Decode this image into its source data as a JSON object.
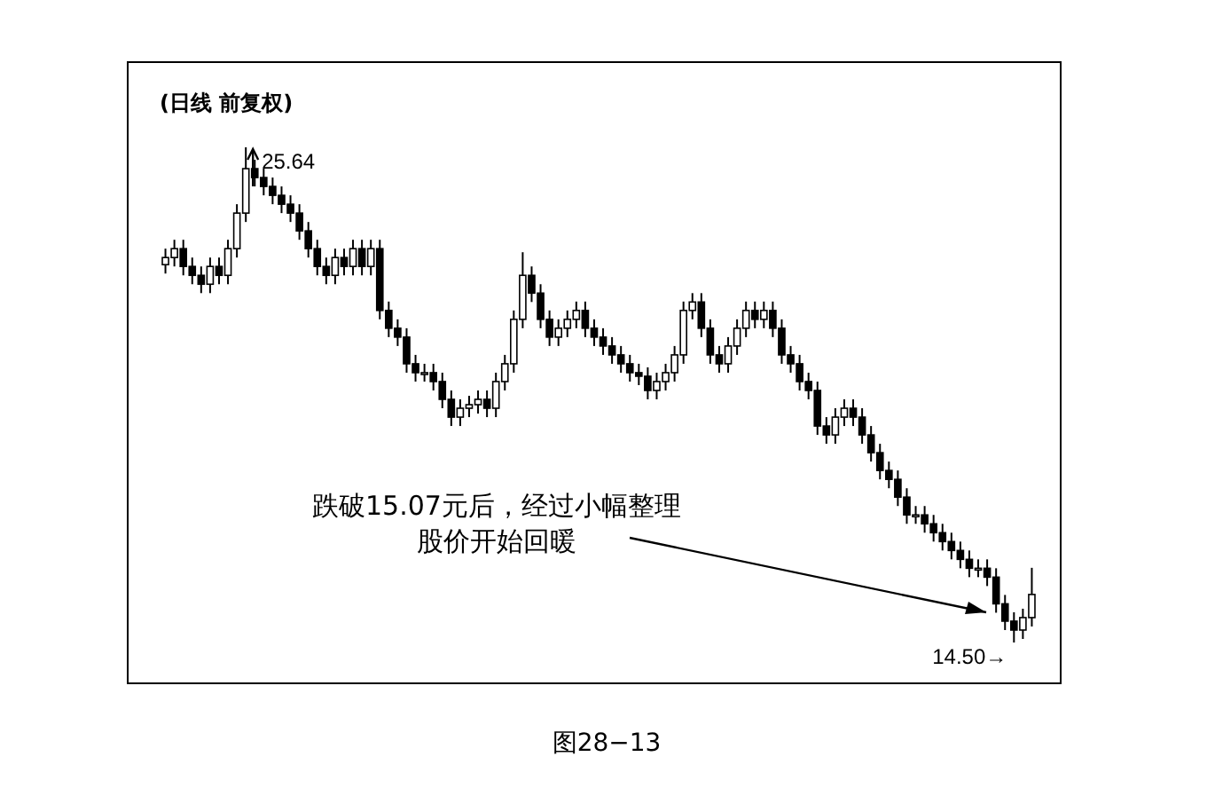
{
  "chart_data": {
    "type": "candlestick",
    "title": "(日线 前复权)",
    "categories": [
      null,
      null,
      null,
      null,
      null,
      null,
      null,
      null,
      null,
      null,
      null,
      null,
      null,
      null,
      null,
      null,
      null,
      null,
      null,
      null,
      null,
      null,
      null,
      null,
      null,
      null,
      null,
      null,
      null,
      null,
      null,
      null,
      null,
      null,
      null,
      null,
      null,
      null,
      null,
      null,
      null,
      null,
      null,
      null,
      null,
      null,
      null,
      null,
      null,
      null,
      null,
      null,
      null,
      null,
      null,
      null,
      null,
      null,
      null,
      null,
      null,
      null,
      null,
      null,
      null,
      null,
      null,
      null,
      null,
      null,
      null,
      null,
      null,
      null,
      null,
      null,
      null,
      null,
      null,
      null,
      null,
      null,
      null,
      null,
      null,
      null,
      null,
      null,
      null,
      null,
      null,
      null,
      null,
      null,
      null,
      null,
      null,
      null
    ],
    "ohlc": [
      [
        23.0,
        23.36,
        22.8,
        23.16
      ],
      [
        23.16,
        23.56,
        22.96,
        23.36
      ],
      [
        23.36,
        23.56,
        22.76,
        22.96
      ],
      [
        22.96,
        23.16,
        22.56,
        22.76
      ],
      [
        22.76,
        22.96,
        22.36,
        22.56
      ],
      [
        22.56,
        23.16,
        22.36,
        22.96
      ],
      [
        22.96,
        23.16,
        22.56,
        22.76
      ],
      [
        22.76,
        23.56,
        22.56,
        23.36
      ],
      [
        23.36,
        24.36,
        23.16,
        24.16
      ],
      [
        24.16,
        25.64,
        23.96,
        25.16
      ],
      [
        25.16,
        25.36,
        24.76,
        24.96
      ],
      [
        24.96,
        25.16,
        24.56,
        24.76
      ],
      [
        24.76,
        24.96,
        24.36,
        24.56
      ],
      [
        24.56,
        24.76,
        24.16,
        24.36
      ],
      [
        24.36,
        24.56,
        23.96,
        24.16
      ],
      [
        24.16,
        24.36,
        23.56,
        23.76
      ],
      [
        23.76,
        23.96,
        23.16,
        23.36
      ],
      [
        23.36,
        23.56,
        22.76,
        22.96
      ],
      [
        22.96,
        23.16,
        22.56,
        22.76
      ],
      [
        22.76,
        23.36,
        22.56,
        23.16
      ],
      [
        23.16,
        23.36,
        22.76,
        22.96
      ],
      [
        22.96,
        23.56,
        22.76,
        23.36
      ],
      [
        23.36,
        23.56,
        22.76,
        22.96
      ],
      [
        22.96,
        23.56,
        22.76,
        23.36
      ],
      [
        23.36,
        23.56,
        21.77,
        21.97
      ],
      [
        21.97,
        22.17,
        21.37,
        21.57
      ],
      [
        21.57,
        21.77,
        21.17,
        21.37
      ],
      [
        21.37,
        21.57,
        20.57,
        20.77
      ],
      [
        20.77,
        20.97,
        20.37,
        20.57
      ],
      [
        20.57,
        20.77,
        20.37,
        20.57
      ],
      [
        20.57,
        20.77,
        20.17,
        20.37
      ],
      [
        20.37,
        20.57,
        19.77,
        19.97
      ],
      [
        19.97,
        20.17,
        19.37,
        19.57
      ],
      [
        19.57,
        19.97,
        19.37,
        19.77
      ],
      [
        19.77,
        20.05,
        19.57,
        19.85
      ],
      [
        19.85,
        20.17,
        19.65,
        19.97
      ],
      [
        19.97,
        20.17,
        19.57,
        19.77
      ],
      [
        19.77,
        20.57,
        19.57,
        20.37
      ],
      [
        20.37,
        20.97,
        20.17,
        20.77
      ],
      [
        20.77,
        21.97,
        20.57,
        21.77
      ],
      [
        21.77,
        23.28,
        21.57,
        22.76
      ],
      [
        22.76,
        22.96,
        22.16,
        22.36
      ],
      [
        22.36,
        22.56,
        21.57,
        21.77
      ],
      [
        21.77,
        21.97,
        21.17,
        21.37
      ],
      [
        21.37,
        21.77,
        21.17,
        21.57
      ],
      [
        21.57,
        21.97,
        21.37,
        21.77
      ],
      [
        21.77,
        22.17,
        21.57,
        21.97
      ],
      [
        21.97,
        22.17,
        21.37,
        21.57
      ],
      [
        21.57,
        21.77,
        21.17,
        21.37
      ],
      [
        21.37,
        21.57,
        20.97,
        21.17
      ],
      [
        21.17,
        21.37,
        20.77,
        20.97
      ],
      [
        20.97,
        21.17,
        20.57,
        20.77
      ],
      [
        20.77,
        20.97,
        20.37,
        20.57
      ],
      [
        20.57,
        20.77,
        20.29,
        20.49
      ],
      [
        20.49,
        20.69,
        19.97,
        20.17
      ],
      [
        20.17,
        20.57,
        19.97,
        20.37
      ],
      [
        20.37,
        20.77,
        20.17,
        20.57
      ],
      [
        20.57,
        21.17,
        20.37,
        20.97
      ],
      [
        20.97,
        22.17,
        20.77,
        21.97
      ],
      [
        21.97,
        22.36,
        21.77,
        22.16
      ],
      [
        22.16,
        22.36,
        21.37,
        21.57
      ],
      [
        21.57,
        21.77,
        20.77,
        20.97
      ],
      [
        20.97,
        21.17,
        20.57,
        20.77
      ],
      [
        20.77,
        21.37,
        20.57,
        21.17
      ],
      [
        21.17,
        21.77,
        20.97,
        21.57
      ],
      [
        21.57,
        22.17,
        21.37,
        21.97
      ],
      [
        21.97,
        22.17,
        21.57,
        21.77
      ],
      [
        21.77,
        22.17,
        21.57,
        21.97
      ],
      [
        21.97,
        22.17,
        21.37,
        21.57
      ],
      [
        21.57,
        21.77,
        20.77,
        20.97
      ],
      [
        20.97,
        21.17,
        20.57,
        20.77
      ],
      [
        20.77,
        20.97,
        20.17,
        20.37
      ],
      [
        20.37,
        20.57,
        19.97,
        20.17
      ],
      [
        20.17,
        20.37,
        19.17,
        19.37
      ],
      [
        19.37,
        19.57,
        18.97,
        19.17
      ],
      [
        19.17,
        19.77,
        18.97,
        19.57
      ],
      [
        19.57,
        19.97,
        19.37,
        19.77
      ],
      [
        19.77,
        19.97,
        19.37,
        19.57
      ],
      [
        19.57,
        19.77,
        18.97,
        19.17
      ],
      [
        19.17,
        19.37,
        18.57,
        18.77
      ],
      [
        18.77,
        18.97,
        18.17,
        18.37
      ],
      [
        18.37,
        18.57,
        17.97,
        18.17
      ],
      [
        18.17,
        18.37,
        17.57,
        17.77
      ],
      [
        17.77,
        17.97,
        17.17,
        17.37
      ],
      [
        17.37,
        17.57,
        17.17,
        17.37
      ],
      [
        17.37,
        17.57,
        16.97,
        17.17
      ],
      [
        17.17,
        17.37,
        16.77,
        16.97
      ],
      [
        16.97,
        17.17,
        16.57,
        16.77
      ],
      [
        16.77,
        16.97,
        16.37,
        16.57
      ],
      [
        16.57,
        16.77,
        16.17,
        16.37
      ],
      [
        16.37,
        16.57,
        15.97,
        16.17
      ],
      [
        16.17,
        16.37,
        15.97,
        16.17
      ],
      [
        16.17,
        16.37,
        15.77,
        15.97
      ],
      [
        15.97,
        16.17,
        15.17,
        15.37
      ],
      [
        15.37,
        15.57,
        14.78,
        14.98
      ],
      [
        14.98,
        15.18,
        14.5,
        14.78
      ],
      [
        14.78,
        15.26,
        14.58,
        15.06
      ],
      [
        15.06,
        16.18,
        14.86,
        15.58
      ]
    ],
    "annotations": [
      "25.64",
      "14.50→",
      "跌破15.07元后，经过小幅整理",
      "股价开始回暖",
      "图28−13"
    ]
  }
}
